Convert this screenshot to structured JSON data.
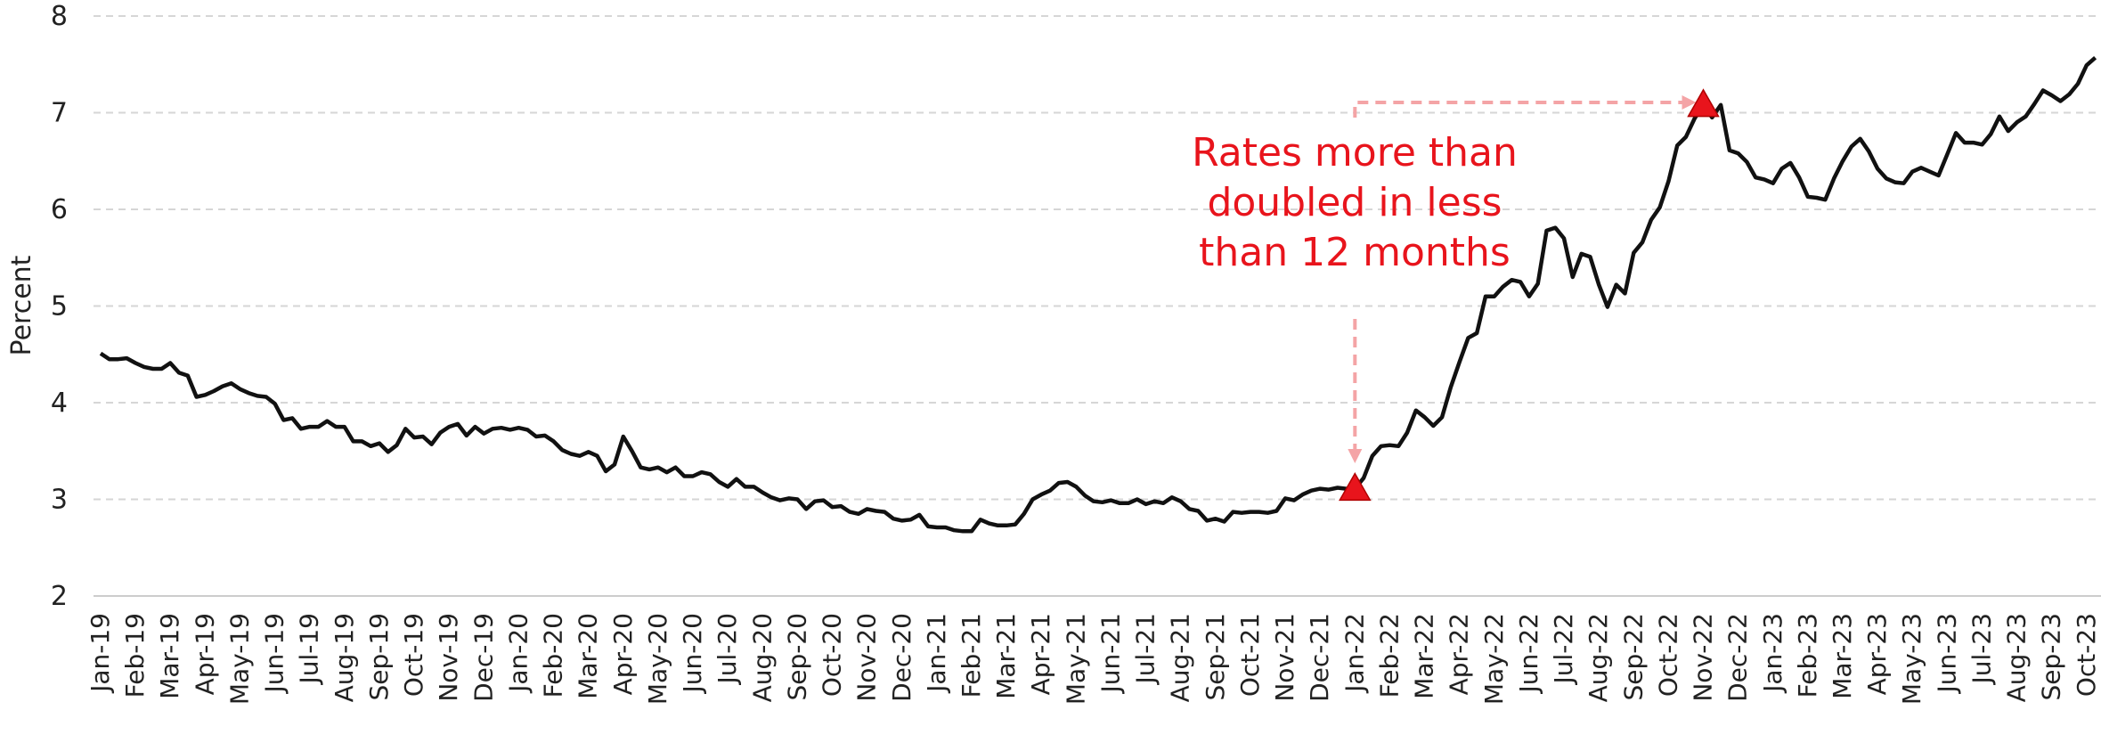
{
  "chart_data": {
    "type": "line",
    "y_label": "Percent",
    "color": "#111111",
    "grid": true,
    "ylim": [
      2,
      8
    ],
    "yticks": [
      2,
      3,
      4,
      5,
      6,
      7,
      8
    ],
    "annotation": [
      "Rates more than",
      "doubled in less",
      "than 12 months"
    ],
    "annotation_color": "#e8141c",
    "arrow_color": "#f4a4a6",
    "highlights": [
      {
        "x": "Jan-22",
        "value": 3.11
      },
      {
        "x": "Nov-22",
        "value": 7.08
      }
    ],
    "categories": [
      "Jan-19",
      null,
      null,
      null,
      "Feb-19",
      null,
      null,
      null,
      "Mar-19",
      null,
      null,
      null,
      "Apr-19",
      null,
      null,
      null,
      "May-19",
      null,
      null,
      null,
      "Jun-19",
      null,
      null,
      null,
      "Jul-19",
      null,
      null,
      null,
      "Aug-19",
      null,
      null,
      null,
      "Sep-19",
      null,
      null,
      null,
      "Oct-19",
      null,
      null,
      null,
      "Nov-19",
      null,
      null,
      null,
      "Dec-19",
      null,
      null,
      null,
      "Jan-20",
      null,
      null,
      null,
      "Feb-20",
      null,
      null,
      null,
      "Mar-20",
      null,
      null,
      null,
      "Apr-20",
      null,
      null,
      null,
      "May-20",
      null,
      null,
      null,
      "Jun-20",
      null,
      null,
      null,
      "Jul-20",
      null,
      null,
      null,
      "Aug-20",
      null,
      null,
      null,
      "Sep-20",
      null,
      null,
      null,
      "Oct-20",
      null,
      null,
      null,
      "Nov-20",
      null,
      null,
      null,
      "Dec-20",
      null,
      null,
      null,
      "Jan-21",
      null,
      null,
      null,
      "Feb-21",
      null,
      null,
      null,
      "Mar-21",
      null,
      null,
      null,
      "Apr-21",
      null,
      null,
      null,
      "May-21",
      null,
      null,
      null,
      "Jun-21",
      null,
      null,
      null,
      "Jul-21",
      null,
      null,
      null,
      "Aug-21",
      null,
      null,
      null,
      "Sep-21",
      null,
      null,
      null,
      "Oct-21",
      null,
      null,
      null,
      "Nov-21",
      null,
      null,
      null,
      "Dec-21",
      null,
      null,
      null,
      "Jan-22",
      null,
      null,
      null,
      "Feb-22",
      null,
      null,
      null,
      "Mar-22",
      null,
      null,
      null,
      "Apr-22",
      null,
      null,
      null,
      "May-22",
      null,
      null,
      null,
      "Jun-22",
      null,
      null,
      null,
      "Jul-22",
      null,
      null,
      null,
      "Aug-22",
      null,
      null,
      null,
      "Sep-22",
      null,
      null,
      null,
      "Oct-22",
      null,
      null,
      null,
      "Nov-22",
      null,
      null,
      null,
      "Dec-22",
      null,
      null,
      null,
      "Jan-23",
      null,
      null,
      null,
      "Feb-23",
      null,
      null,
      null,
      "Mar-23",
      null,
      null,
      null,
      "Apr-23",
      null,
      null,
      null,
      "May-23",
      null,
      null,
      null,
      "Jun-23",
      null,
      null,
      null,
      "Jul-23",
      null,
      null,
      null,
      "Aug-23",
      null,
      null,
      null,
      "Sep-23",
      null,
      null,
      null,
      "Oct-23",
      null
    ],
    "values": [
      4.51,
      4.45,
      4.45,
      4.46,
      4.41,
      4.37,
      4.35,
      4.35,
      4.41,
      4.31,
      4.28,
      4.06,
      4.08,
      4.12,
      4.17,
      4.2,
      4.14,
      4.1,
      4.07,
      4.06,
      3.99,
      3.82,
      3.84,
      3.73,
      3.75,
      3.75,
      3.81,
      3.75,
      3.75,
      3.6,
      3.6,
      3.55,
      3.58,
      3.49,
      3.56,
      3.73,
      3.64,
      3.65,
      3.57,
      3.69,
      3.75,
      3.78,
      3.66,
      3.75,
      3.68,
      3.73,
      3.74,
      3.72,
      3.74,
      3.72,
      3.65,
      3.66,
      3.6,
      3.51,
      3.47,
      3.45,
      3.49,
      3.45,
      3.29,
      3.36,
      3.65,
      3.5,
      3.33,
      3.31,
      3.33,
      3.28,
      3.33,
      3.24,
      3.24,
      3.28,
      3.26,
      3.18,
      3.13,
      3.21,
      3.13,
      3.13,
      3.07,
      3.02,
      2.99,
      3.01,
      3.0,
      2.9,
      2.98,
      2.99,
      2.92,
      2.93,
      2.87,
      2.85,
      2.9,
      2.88,
      2.87,
      2.8,
      2.78,
      2.79,
      2.84,
      2.72,
      2.71,
      2.71,
      2.68,
      2.67,
      2.67,
      2.79,
      2.75,
      2.73,
      2.73,
      2.74,
      2.85,
      3.0,
      3.05,
      3.09,
      3.17,
      3.18,
      3.13,
      3.04,
      2.98,
      2.97,
      2.99,
      2.96,
      2.96,
      3.0,
      2.95,
      2.98,
      2.96,
      3.02,
      2.98,
      2.9,
      2.88,
      2.78,
      2.8,
      2.77,
      2.87,
      2.86,
      2.87,
      2.87,
      2.86,
      2.88,
      3.01,
      2.99,
      3.05,
      3.09,
      3.11,
      3.1,
      3.12,
      3.11,
      3.11,
      3.22,
      3.45,
      3.55,
      3.56,
      3.55,
      3.69,
      3.92,
      3.85,
      3.76,
      3.85,
      4.16,
      4.42,
      4.67,
      4.72,
      5.1,
      5.1,
      5.2,
      5.27,
      5.25,
      5.1,
      5.23,
      5.78,
      5.81,
      5.7,
      5.3,
      5.54,
      5.51,
      5.22,
      4.99,
      5.22,
      5.13,
      5.55,
      5.66,
      5.89,
      6.02,
      6.29,
      6.66,
      6.75,
      6.94,
      7.08,
      6.95,
      7.08,
      6.61,
      6.58,
      6.49,
      6.33,
      6.31,
      6.27,
      6.42,
      6.48,
      6.33,
      6.13,
      6.12,
      6.1,
      6.32,
      6.5,
      6.65,
      6.73,
      6.6,
      6.42,
      6.32,
      6.28,
      6.27,
      6.39,
      6.43,
      6.39,
      6.35,
      6.57,
      6.79,
      6.69,
      6.69,
      6.67,
      6.78,
      6.96,
      6.81,
      6.9,
      6.96,
      7.09,
      7.23,
      7.18,
      7.12,
      7.19,
      7.3,
      7.49,
      7.57
    ]
  }
}
